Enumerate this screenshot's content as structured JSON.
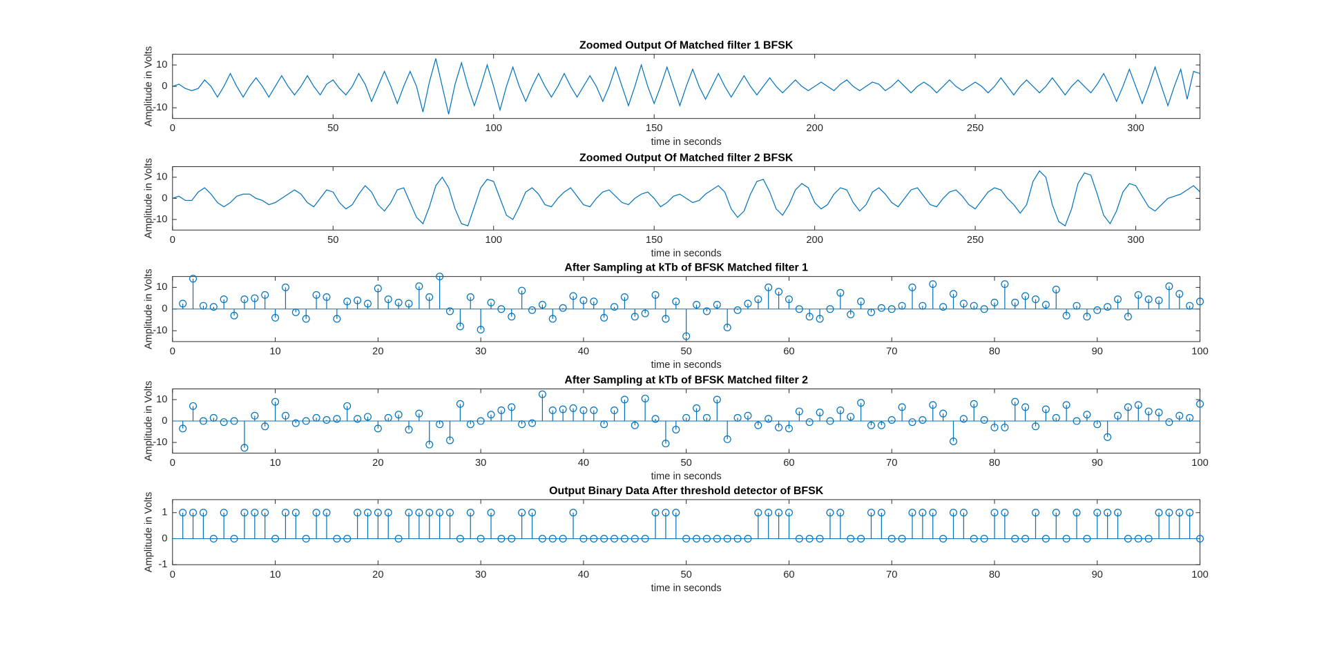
{
  "chart_data": [
    {
      "type": "line",
      "title": "Zoomed Output Of Matched filter 1 BFSK",
      "xlabel": "time in seconds",
      "ylabel": "Amplitude in Volts",
      "color": "#0072bd",
      "x": [
        0,
        2,
        4,
        6,
        8,
        10,
        12,
        14,
        16,
        18,
        20,
        22,
        24,
        26,
        28,
        30,
        32,
        34,
        36,
        38,
        40,
        42,
        44,
        46,
        48,
        50,
        52,
        54,
        56,
        58,
        60,
        62,
        64,
        66,
        68,
        70,
        72,
        74,
        76,
        78,
        80,
        82,
        84,
        86,
        88,
        90,
        92,
        94,
        96,
        98,
        100,
        102,
        104,
        106,
        108,
        110,
        112,
        114,
        116,
        118,
        120,
        122,
        124,
        126,
        128,
        130,
        132,
        134,
        136,
        138,
        140,
        142,
        144,
        146,
        148,
        150,
        152,
        154,
        156,
        158,
        160,
        162,
        164,
        166,
        168,
        170,
        172,
        174,
        176,
        178,
        180,
        182,
        184,
        186,
        188,
        190,
        192,
        194,
        196,
        198,
        200,
        202,
        204,
        206,
        208,
        210,
        212,
        214,
        216,
        218,
        220,
        222,
        224,
        226,
        228,
        230,
        232,
        234,
        236,
        238,
        240,
        242,
        244,
        246,
        248,
        250,
        252,
        254,
        256,
        258,
        260,
        262,
        264,
        266,
        268,
        270,
        272,
        274,
        276,
        278,
        280,
        282,
        284,
        286,
        288,
        290,
        292,
        294,
        296,
        298,
        300,
        302,
        304,
        306,
        308,
        310,
        312,
        314,
        316,
        318,
        320
      ],
      "values": [
        0,
        1,
        -1,
        -2,
        -1,
        3,
        0,
        -5,
        0,
        6,
        0,
        -5,
        0,
        4,
        0,
        -5,
        0,
        5,
        0,
        -4,
        0,
        5,
        0,
        -4,
        1,
        3,
        -1,
        -4,
        0,
        6,
        1,
        -7,
        0,
        7,
        0,
        -8,
        0,
        7,
        0,
        -12,
        2,
        13,
        0,
        -13,
        1,
        11,
        0,
        -9,
        0,
        10,
        0,
        -11,
        0,
        9,
        0,
        -7,
        0,
        6,
        0,
        -5,
        0,
        6,
        0,
        -5,
        0,
        5,
        0,
        -7,
        0,
        9,
        0,
        -9,
        0,
        10,
        0,
        -8,
        0,
        9,
        0,
        -9,
        0,
        8,
        0,
        -6,
        0,
        6,
        0,
        -5,
        0,
        5,
        0,
        -4,
        0,
        4,
        0,
        -3,
        0,
        3,
        0,
        -2,
        0,
        2,
        0,
        -2,
        1,
        3,
        0,
        -2,
        0,
        2,
        1,
        -2,
        0,
        3,
        0,
        -3,
        0,
        2,
        0,
        -3,
        0,
        3,
        0,
        -2,
        0,
        2,
        0,
        -3,
        0,
        4,
        0,
        -4,
        0,
        3,
        0,
        -3,
        0,
        4,
        0,
        -4,
        0,
        3,
        0,
        -3,
        1,
        6,
        0,
        -7,
        0,
        8,
        0,
        -8,
        0,
        9,
        0,
        -9,
        0,
        8,
        -6,
        7,
        6
      ],
      "xlim": [
        0,
        320
      ],
      "ylim": [
        -15,
        15
      ],
      "xticks": [
        0,
        50,
        100,
        150,
        200,
        250,
        300
      ],
      "yticks": [
        -10,
        0,
        10
      ]
    },
    {
      "type": "line",
      "title": "Zoomed Output Of Matched filter 2 BFSK",
      "xlabel": "time in seconds",
      "ylabel": "Amplitude in Volts",
      "color": "#0072bd",
      "x": [
        0,
        2,
        4,
        6,
        8,
        10,
        12,
        14,
        16,
        18,
        20,
        22,
        24,
        26,
        28,
        30,
        32,
        34,
        36,
        38,
        40,
        42,
        44,
        46,
        48,
        50,
        52,
        54,
        56,
        58,
        60,
        62,
        64,
        66,
        68,
        70,
        72,
        74,
        76,
        78,
        80,
        82,
        84,
        86,
        88,
        90,
        92,
        94,
        96,
        98,
        100,
        102,
        104,
        106,
        108,
        110,
        112,
        114,
        116,
        118,
        120,
        122,
        124,
        126,
        128,
        130,
        132,
        134,
        136,
        138,
        140,
        142,
        144,
        146,
        148,
        150,
        152,
        154,
        156,
        158,
        160,
        162,
        164,
        166,
        168,
        170,
        172,
        174,
        176,
        178,
        180,
        182,
        184,
        186,
        188,
        190,
        192,
        194,
        196,
        198,
        200,
        202,
        204,
        206,
        208,
        210,
        212,
        214,
        216,
        218,
        220,
        222,
        224,
        226,
        228,
        230,
        232,
        234,
        236,
        238,
        240,
        242,
        244,
        246,
        248,
        250,
        252,
        254,
        256,
        258,
        260,
        262,
        264,
        266,
        268,
        270,
        272,
        274,
        276,
        278,
        280,
        282,
        284,
        286,
        288,
        290,
        292,
        294,
        296,
        298,
        300,
        302,
        304,
        306,
        308,
        310,
        312,
        314,
        316,
        318,
        320
      ],
      "values": [
        0,
        1,
        -1,
        -1,
        3,
        5,
        2,
        -2,
        -4,
        -2,
        1,
        2,
        2,
        0,
        -1,
        -3,
        -2,
        0,
        2,
        4,
        2,
        -2,
        -4,
        0,
        4,
        3,
        -2,
        -5,
        -3,
        2,
        6,
        3,
        -3,
        -6,
        -2,
        4,
        5,
        -2,
        -9,
        -12,
        -4,
        6,
        10,
        5,
        -5,
        -12,
        -13,
        -4,
        5,
        9,
        8,
        0,
        -8,
        -10,
        -4,
        3,
        5,
        2,
        -3,
        -4,
        0,
        3,
        5,
        1,
        -3,
        -4,
        0,
        3,
        4,
        1,
        -2,
        -3,
        0,
        2,
        3,
        0,
        -4,
        -2,
        1,
        2,
        0,
        -2,
        -1,
        2,
        4,
        6,
        3,
        -5,
        -9,
        -6,
        2,
        8,
        9,
        3,
        -5,
        -8,
        -3,
        4,
        7,
        5,
        -2,
        -5,
        -3,
        2,
        5,
        4,
        -2,
        -6,
        -3,
        3,
        5,
        2,
        -2,
        -4,
        0,
        4,
        5,
        1,
        -3,
        -4,
        0,
        3,
        4,
        1,
        -3,
        -5,
        -1,
        3,
        5,
        4,
        0,
        -3,
        -7,
        -3,
        8,
        13,
        10,
        -3,
        -11,
        -13,
        -5,
        7,
        12,
        11,
        2,
        -8,
        -12,
        -6,
        3,
        7,
        6,
        1,
        -4,
        -6,
        -3,
        0,
        1,
        2,
        4,
        6,
        3
      ],
      "xlim": [
        0,
        320
      ],
      "ylim": [
        -15,
        15
      ],
      "xticks": [
        0,
        50,
        100,
        150,
        200,
        250,
        300
      ],
      "yticks": [
        -10,
        0,
        10
      ]
    },
    {
      "type": "stem",
      "title": "After Sampling at kTb of BFSK Matched filter 1",
      "xlabel": "time in seconds",
      "ylabel": "Amplitude in Volts",
      "color": "#0072bd",
      "x": [
        1,
        2,
        3,
        4,
        5,
        6,
        7,
        8,
        9,
        10,
        11,
        12,
        13,
        14,
        15,
        16,
        17,
        18,
        19,
        20,
        21,
        22,
        23,
        24,
        25,
        26,
        27,
        28,
        29,
        30,
        31,
        32,
        33,
        34,
        35,
        36,
        37,
        38,
        39,
        40,
        41,
        42,
        43,
        44,
        45,
        46,
        47,
        48,
        49,
        50,
        51,
        52,
        53,
        54,
        55,
        56,
        57,
        58,
        59,
        60,
        61,
        62,
        63,
        64,
        65,
        66,
        67,
        68,
        69,
        70,
        71,
        72,
        73,
        74,
        75,
        76,
        77,
        78,
        79,
        80,
        81,
        82,
        83,
        84,
        85,
        86,
        87,
        88,
        89,
        90,
        91,
        92,
        93,
        94,
        95,
        96,
        97,
        98,
        99,
        100
      ],
      "values": [
        2.5,
        14,
        1.5,
        1,
        4.5,
        -3,
        4.5,
        5,
        6.5,
        -4,
        10,
        -1.5,
        -4.5,
        6.5,
        5.5,
        -4.5,
        3.5,
        4,
        2.5,
        9.5,
        4.5,
        3,
        2.5,
        10.5,
        5.5,
        15,
        -1,
        -8,
        5.5,
        -9.5,
        3,
        0,
        -3.5,
        8.5,
        -0.5,
        2,
        -4.5,
        0.5,
        6,
        4,
        3.5,
        -4,
        1,
        5.5,
        -3.5,
        -2,
        6.5,
        -4.5,
        3.5,
        -12.5,
        2,
        -1,
        2,
        -8.5,
        -0.5,
        2.5,
        4.5,
        10,
        8,
        4.5,
        0,
        -3.5,
        -4.5,
        0,
        7.5,
        -2.5,
        3.5,
        -1.5,
        0.5,
        0,
        1.5,
        10,
        1.5,
        11.5,
        1,
        7,
        2.5,
        1.5,
        0,
        3,
        11.5,
        3,
        6,
        4.5,
        2,
        9,
        -3,
        1.5,
        -3.5,
        -0.5,
        1,
        4.5,
        -3.5,
        6.5,
        4.5,
        4,
        10.5,
        7,
        1.5,
        3.5
      ],
      "xlim": [
        0,
        100
      ],
      "ylim": [
        -15,
        15
      ],
      "xticks": [
        0,
        10,
        20,
        30,
        40,
        50,
        60,
        70,
        80,
        90,
        100
      ],
      "yticks": [
        -10,
        0,
        10
      ]
    },
    {
      "type": "stem",
      "title": "After Sampling at kTb of BFSK Matched filter 2",
      "xlabel": "time in seconds",
      "ylabel": "Amplitude in Volts",
      "color": "#0072bd",
      "x": [
        1,
        2,
        3,
        4,
        5,
        6,
        7,
        8,
        9,
        10,
        11,
        12,
        13,
        14,
        15,
        16,
        17,
        18,
        19,
        20,
        21,
        22,
        23,
        24,
        25,
        26,
        27,
        28,
        29,
        30,
        31,
        32,
        33,
        34,
        35,
        36,
        37,
        38,
        39,
        40,
        41,
        42,
        43,
        44,
        45,
        46,
        47,
        48,
        49,
        50,
        51,
        52,
        53,
        54,
        55,
        56,
        57,
        58,
        59,
        60,
        61,
        62,
        63,
        64,
        65,
        66,
        67,
        68,
        69,
        70,
        71,
        72,
        73,
        74,
        75,
        76,
        77,
        78,
        79,
        80,
        81,
        82,
        83,
        84,
        85,
        86,
        87,
        88,
        89,
        90,
        91,
        92,
        93,
        94,
        95,
        96,
        97,
        98,
        99,
        100
      ],
      "values": [
        -3.5,
        7,
        0,
        1.5,
        -0.5,
        0,
        -12.5,
        2.5,
        -2.5,
        9,
        2.5,
        -1,
        0,
        1.5,
        0.5,
        1,
        7,
        1,
        2,
        -3.5,
        1.5,
        3,
        -4,
        3.5,
        -11,
        -1.5,
        -9,
        8,
        -1.5,
        0,
        3,
        5,
        6.5,
        -1.5,
        -1,
        12.5,
        5,
        5.5,
        6,
        5,
        5,
        -1.5,
        5,
        10,
        -2,
        10.5,
        1,
        -10.5,
        -4,
        1.5,
        6,
        1.5,
        10,
        -8.5,
        1.5,
        2.5,
        -2,
        1,
        -3,
        -3.5,
        4.5,
        -0.5,
        4,
        0,
        5,
        2,
        8.5,
        -2,
        -2,
        0.5,
        6.5,
        -0.5,
        0.5,
        7.5,
        3.5,
        -9.5,
        1,
        8,
        0.5,
        -3,
        -3,
        9,
        6.5,
        -2.5,
        5.5,
        1.5,
        7.5,
        0,
        3,
        -1.5,
        -7.5,
        2.5,
        6.5,
        7.5,
        4.5,
        4,
        -0.5,
        2.5,
        1.5,
        8
      ],
      "xlim": [
        0,
        100
      ],
      "ylim": [
        -15,
        15
      ],
      "xticks": [
        0,
        10,
        20,
        30,
        40,
        50,
        60,
        70,
        80,
        90,
        100
      ],
      "yticks": [
        -10,
        0,
        10
      ]
    },
    {
      "type": "stem",
      "title": "Output Binary Data After threshold detector of BFSK",
      "xlabel": "time in seconds",
      "ylabel": "Amplitude in Volts",
      "color": "#0072bd",
      "x": [
        1,
        2,
        3,
        4,
        5,
        6,
        7,
        8,
        9,
        10,
        11,
        12,
        13,
        14,
        15,
        16,
        17,
        18,
        19,
        20,
        21,
        22,
        23,
        24,
        25,
        26,
        27,
        28,
        29,
        30,
        31,
        32,
        33,
        34,
        35,
        36,
        37,
        38,
        39,
        40,
        41,
        42,
        43,
        44,
        45,
        46,
        47,
        48,
        49,
        50,
        51,
        52,
        53,
        54,
        55,
        56,
        57,
        58,
        59,
        60,
        61,
        62,
        63,
        64,
        65,
        66,
        67,
        68,
        69,
        70,
        71,
        72,
        73,
        74,
        75,
        76,
        77,
        78,
        79,
        80,
        81,
        82,
        83,
        84,
        85,
        86,
        87,
        88,
        89,
        90,
        91,
        92,
        93,
        94,
        95,
        96,
        97,
        98,
        99,
        100
      ],
      "values": [
        1,
        1,
        1,
        0,
        1,
        0,
        1,
        1,
        1,
        0,
        1,
        1,
        0,
        1,
        1,
        0,
        0,
        1,
        1,
        1,
        1,
        0,
        1,
        1,
        1,
        1,
        1,
        0,
        1,
        0,
        1,
        0,
        0,
        1,
        1,
        0,
        0,
        0,
        1,
        0,
        0,
        0,
        0,
        0,
        0,
        0,
        1,
        1,
        1,
        0,
        0,
        0,
        0,
        0,
        0,
        0,
        1,
        1,
        1,
        1,
        0,
        0,
        0,
        1,
        1,
        0,
        0,
        1,
        1,
        0,
        0,
        1,
        1,
        1,
        0,
        1,
        1,
        0,
        0,
        1,
        1,
        0,
        0,
        1,
        0,
        1,
        0,
        1,
        0,
        1,
        1,
        1,
        0,
        0,
        0,
        1,
        1,
        1,
        1,
        0
      ],
      "xlim": [
        0,
        100
      ],
      "ylim": [
        -1,
        1.5
      ],
      "xticks": [
        0,
        10,
        20,
        30,
        40,
        50,
        60,
        70,
        80,
        90,
        100
      ],
      "yticks": [
        -1,
        0,
        1
      ]
    }
  ]
}
